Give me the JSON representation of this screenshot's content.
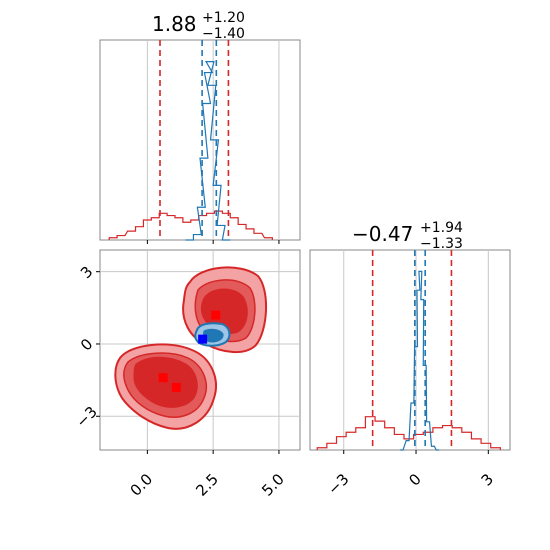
{
  "chart_data": [
    {
      "type": "histogram",
      "panel": "top-left",
      "title": {
        "value": "1.88",
        "plus": "+1.20",
        "minus": "−1.40"
      },
      "xlim": [
        -1.8,
        5.8
      ],
      "grid": true,
      "show_x_ticklabels": false,
      "red_quantile_lines": [
        0.48,
        3.08
      ],
      "blue_quantile_lines": [
        2.08,
        2.62
      ],
      "red_hist": [
        {
          "x": -1.3,
          "y": 0.01
        },
        {
          "x": -1.0,
          "y": 0.02
        },
        {
          "x": -0.6,
          "y": 0.04
        },
        {
          "x": -0.3,
          "y": 0.06
        },
        {
          "x": 0.0,
          "y": 0.09
        },
        {
          "x": 0.3,
          "y": 0.1
        },
        {
          "x": 0.6,
          "y": 0.12
        },
        {
          "x": 0.9,
          "y": 0.11
        },
        {
          "x": 1.2,
          "y": 0.1
        },
        {
          "x": 1.5,
          "y": 0.08
        },
        {
          "x": 1.8,
          "y": 0.09
        },
        {
          "x": 2.1,
          "y": 0.11
        },
        {
          "x": 2.4,
          "y": 0.12
        },
        {
          "x": 2.7,
          "y": 0.13
        },
        {
          "x": 3.0,
          "y": 0.12
        },
        {
          "x": 3.3,
          "y": 0.1
        },
        {
          "x": 3.6,
          "y": 0.07
        },
        {
          "x": 3.9,
          "y": 0.05
        },
        {
          "x": 4.2,
          "y": 0.03
        },
        {
          "x": 4.6,
          "y": 0.01
        }
      ],
      "blue_hist": [
        {
          "x": 1.6,
          "y": 0.0
        },
        {
          "x": 1.9,
          "y": 0.03
        },
        {
          "x": 2.05,
          "y": 0.18
        },
        {
          "x": 2.15,
          "y": 0.45
        },
        {
          "x": 2.25,
          "y": 0.75
        },
        {
          "x": 2.32,
          "y": 0.92
        },
        {
          "x": 2.38,
          "y": 0.98
        },
        {
          "x": 2.45,
          "y": 0.85
        },
        {
          "x": 2.55,
          "y": 0.55
        },
        {
          "x": 2.65,
          "y": 0.3
        },
        {
          "x": 2.8,
          "y": 0.08
        },
        {
          "x": 3.0,
          "y": 0.0
        }
      ]
    },
    {
      "type": "contour",
      "panel": "bottom-left",
      "xlim": [
        -1.8,
        5.8
      ],
      "ylim": [
        -4.4,
        3.9
      ],
      "xticks": [
        "0.0",
        "2.5",
        "5.0"
      ],
      "xtick_values": [
        0.0,
        2.5,
        5.0
      ],
      "yticks": [
        "−3",
        "0",
        "3"
      ],
      "ytick_values": [
        -3,
        0,
        3
      ],
      "grid": true,
      "red_points": [
        {
          "x": 2.6,
          "y": 1.2
        },
        {
          "x": 0.6,
          "y": -1.4
        },
        {
          "x": 1.1,
          "y": -1.8
        }
      ],
      "blue_point": {
        "x": 2.1,
        "y": 0.2
      }
    },
    {
      "type": "histogram",
      "panel": "bottom-right",
      "title": {
        "value": "−0.47",
        "plus": "+1.94",
        "minus": "−1.33"
      },
      "xlim": [
        -4.4,
        3.9
      ],
      "xticks": [
        "−3",
        "0",
        "3"
      ],
      "xtick_values": [
        -3,
        0,
        3
      ],
      "grid": true,
      "red_quantile_lines": [
        -1.8,
        1.47
      ],
      "blue_quantile_lines": [
        -0.05,
        0.38
      ],
      "red_hist": [
        {
          "x": -3.9,
          "y": 0.01
        },
        {
          "x": -3.5,
          "y": 0.03
        },
        {
          "x": -3.1,
          "y": 0.06
        },
        {
          "x": -2.7,
          "y": 0.08
        },
        {
          "x": -2.3,
          "y": 0.1
        },
        {
          "x": -1.9,
          "y": 0.15
        },
        {
          "x": -1.5,
          "y": 0.13
        },
        {
          "x": -1.1,
          "y": 0.1
        },
        {
          "x": -0.7,
          "y": 0.07
        },
        {
          "x": -0.3,
          "y": 0.05
        },
        {
          "x": 0.1,
          "y": 0.07
        },
        {
          "x": 0.5,
          "y": 0.08
        },
        {
          "x": 0.9,
          "y": 0.1
        },
        {
          "x": 1.3,
          "y": 0.11
        },
        {
          "x": 1.7,
          "y": 0.1
        },
        {
          "x": 2.1,
          "y": 0.08
        },
        {
          "x": 2.5,
          "y": 0.05
        },
        {
          "x": 2.9,
          "y": 0.03
        },
        {
          "x": 3.3,
          "y": 0.01
        }
      ],
      "blue_hist": [
        {
          "x": -0.6,
          "y": 0.0
        },
        {
          "x": -0.35,
          "y": 0.05
        },
        {
          "x": -0.15,
          "y": 0.25
        },
        {
          "x": 0.0,
          "y": 0.55
        },
        {
          "x": 0.1,
          "y": 0.85
        },
        {
          "x": 0.18,
          "y": 0.95
        },
        {
          "x": 0.26,
          "y": 0.8
        },
        {
          "x": 0.36,
          "y": 0.45
        },
        {
          "x": 0.5,
          "y": 0.15
        },
        {
          "x": 0.7,
          "y": 0.02
        },
        {
          "x": 0.9,
          "y": 0.0
        }
      ]
    }
  ],
  "colors": {
    "red": "#d62728",
    "red_light": "#f4a3a4",
    "red_mid": "#e35a5b",
    "blue": "#1f77b4",
    "blue_light": "#9ec5e6",
    "marker_blue": "#0000ff",
    "marker_red": "#ff0000",
    "grid": "#c8c8c8",
    "frame": "#888888"
  }
}
